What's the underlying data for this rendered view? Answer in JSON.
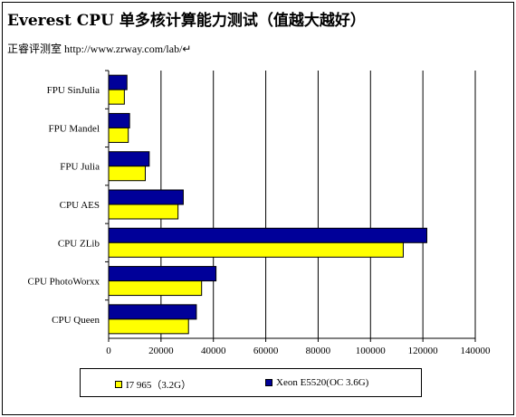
{
  "header": {
    "title": "Everest CPU 单多核计算能力测试（值越大越好）",
    "subtitle": "正睿评测室 http://www.zrway.com/lab/↵"
  },
  "chart_data": {
    "type": "bar",
    "orientation": "horizontal",
    "categories": [
      "FPU SinJulia",
      "FPU Mandel",
      "FPU Julia",
      "CPU AES",
      "CPU ZLib",
      "CPU PhotoWorxx",
      "CPU Queen"
    ],
    "series": [
      {
        "name": "I7 965（3.2G）",
        "color": "#ffff00",
        "values": [
          6000,
          7500,
          14000,
          26500,
          112500,
          35500,
          30500
        ]
      },
      {
        "name": "Xeon E5520(OC 3.6G)",
        "color": "#000099",
        "values": [
          7000,
          8000,
          15500,
          28500,
          121500,
          41000,
          33500
        ]
      }
    ],
    "xlim": [
      0,
      140000
    ],
    "xticks": [
      "0",
      "20000",
      "40000",
      "60000",
      "80000",
      "100000",
      "120000",
      "140000"
    ],
    "grid": true,
    "legend_position": "bottom"
  }
}
